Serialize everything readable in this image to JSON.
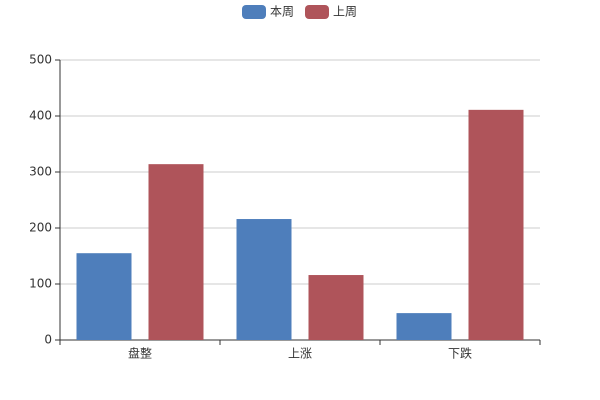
{
  "chart_data": {
    "type": "bar",
    "categories": [
      "盘整",
      "上涨",
      "下跌"
    ],
    "series": [
      {
        "name": "本周",
        "color": "#4e7ebb",
        "values": [
          155,
          216,
          48
        ]
      },
      {
        "name": "上周",
        "color": "#af545a",
        "values": [
          314,
          116,
          411
        ]
      }
    ],
    "ylim": [
      0,
      500
    ],
    "yticks": [
      0,
      100,
      200,
      300,
      400,
      500
    ],
    "grid": true
  }
}
